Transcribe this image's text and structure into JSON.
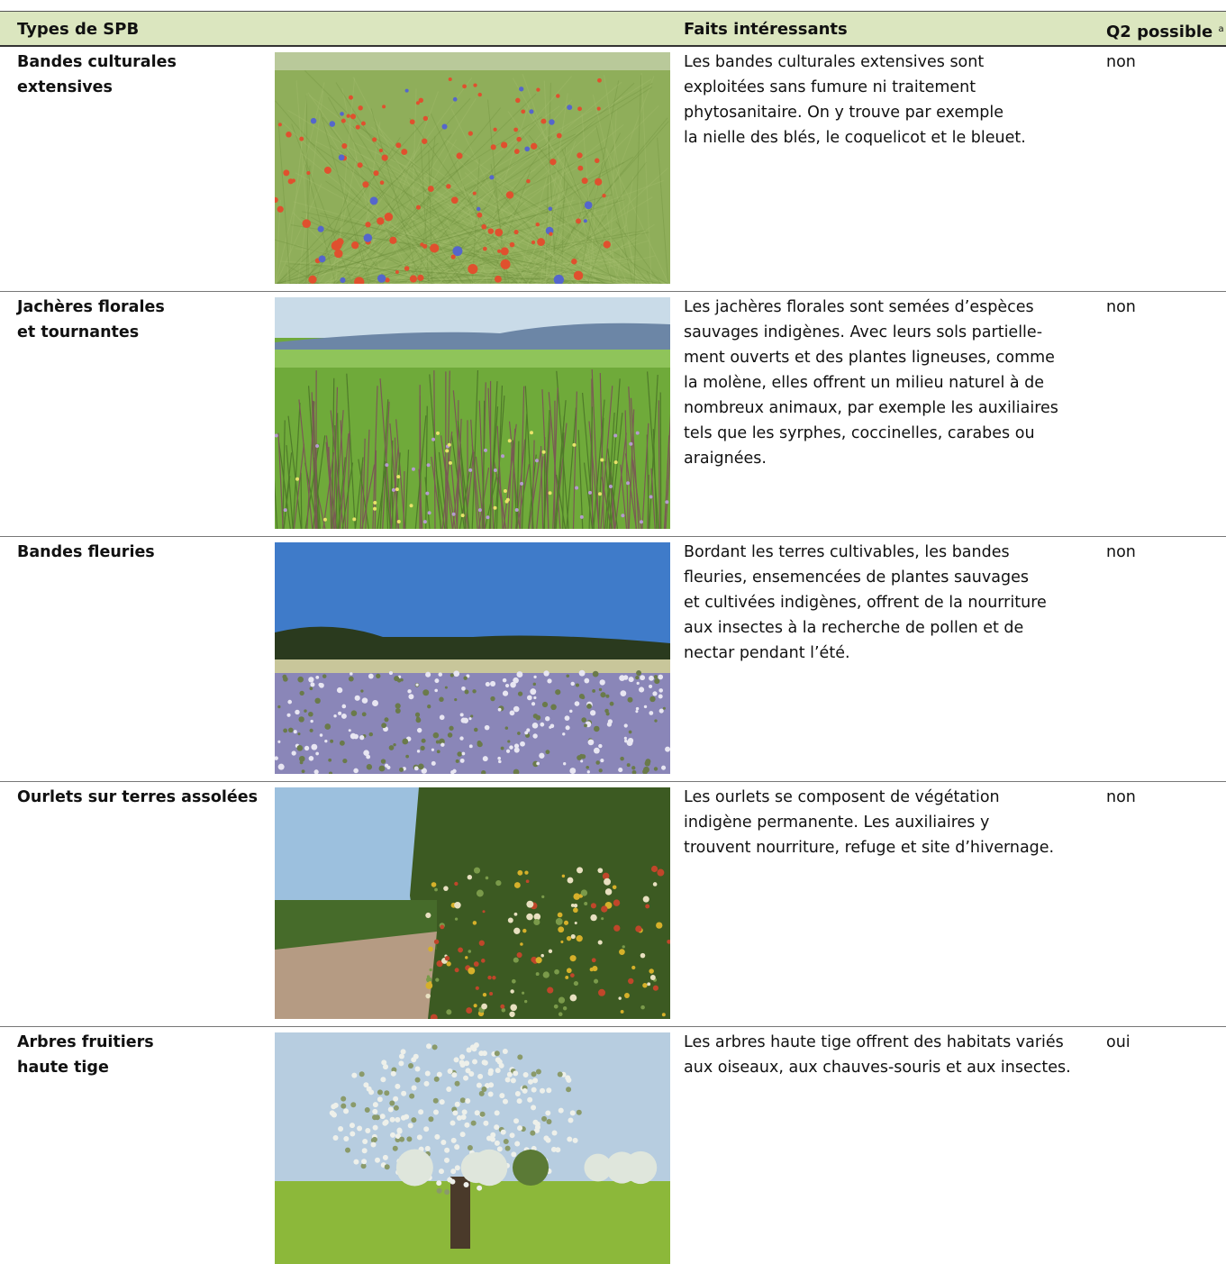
{
  "header": {
    "type_col": "Types de SPB",
    "facts_col": "Faits intéressants",
    "q2_col": "Q2 possible",
    "q2_note": "a"
  },
  "rows": [
    {
      "name": [
        "Bandes culturales",
        "extensives"
      ],
      "facts": [
        "Les bandes culturales extensives sont",
        "exploitées sans fumure ni traitement",
        "phytosanitaire. On y trouve par exemple",
        "la nielle des blés, le coquelicot et le bleuet."
      ],
      "q2": "non"
    },
    {
      "name": [
        "Jachères florales",
        "et tournantes"
      ],
      "facts": [
        "Les jachères florales sont semées d’espèces",
        "sauvages indigènes. Avec leurs sols partielle-",
        "ment ouverts et des plantes ligneuses, comme",
        "la molène, elles offrent un milieu naturel à de",
        "nombreux animaux, par exemple les auxiliaires",
        "tels que les syrphes, coccinelles, carabes ou",
        "araignées."
      ],
      "q2": "non"
    },
    {
      "name": [
        "Bandes fleuries"
      ],
      "facts": [
        "Bordant les terres cultivables, les bandes",
        "fleuries, ensemencées de plantes sauvages",
        "et cultivées indigènes, offrent de la nourriture",
        "aux insectes à la recherche de pollen et de",
        "nectar pendant l’été."
      ],
      "q2": "non"
    },
    {
      "name": [
        "Ourlets sur terres assolées"
      ],
      "facts": [
        "Les ourlets se composent de végétation",
        "indigène permanente. Les auxiliaires y",
        "trouvent nourriture, refuge et site d’hivernage."
      ],
      "q2": "non"
    },
    {
      "name": [
        "Arbres fruitiers",
        "haute tige"
      ],
      "facts": [
        "Les arbres haute tige offrent des habitats variés",
        "aux oiseaux, aux chauves-souris et aux insectes."
      ],
      "q2": "oui"
    }
  ]
}
